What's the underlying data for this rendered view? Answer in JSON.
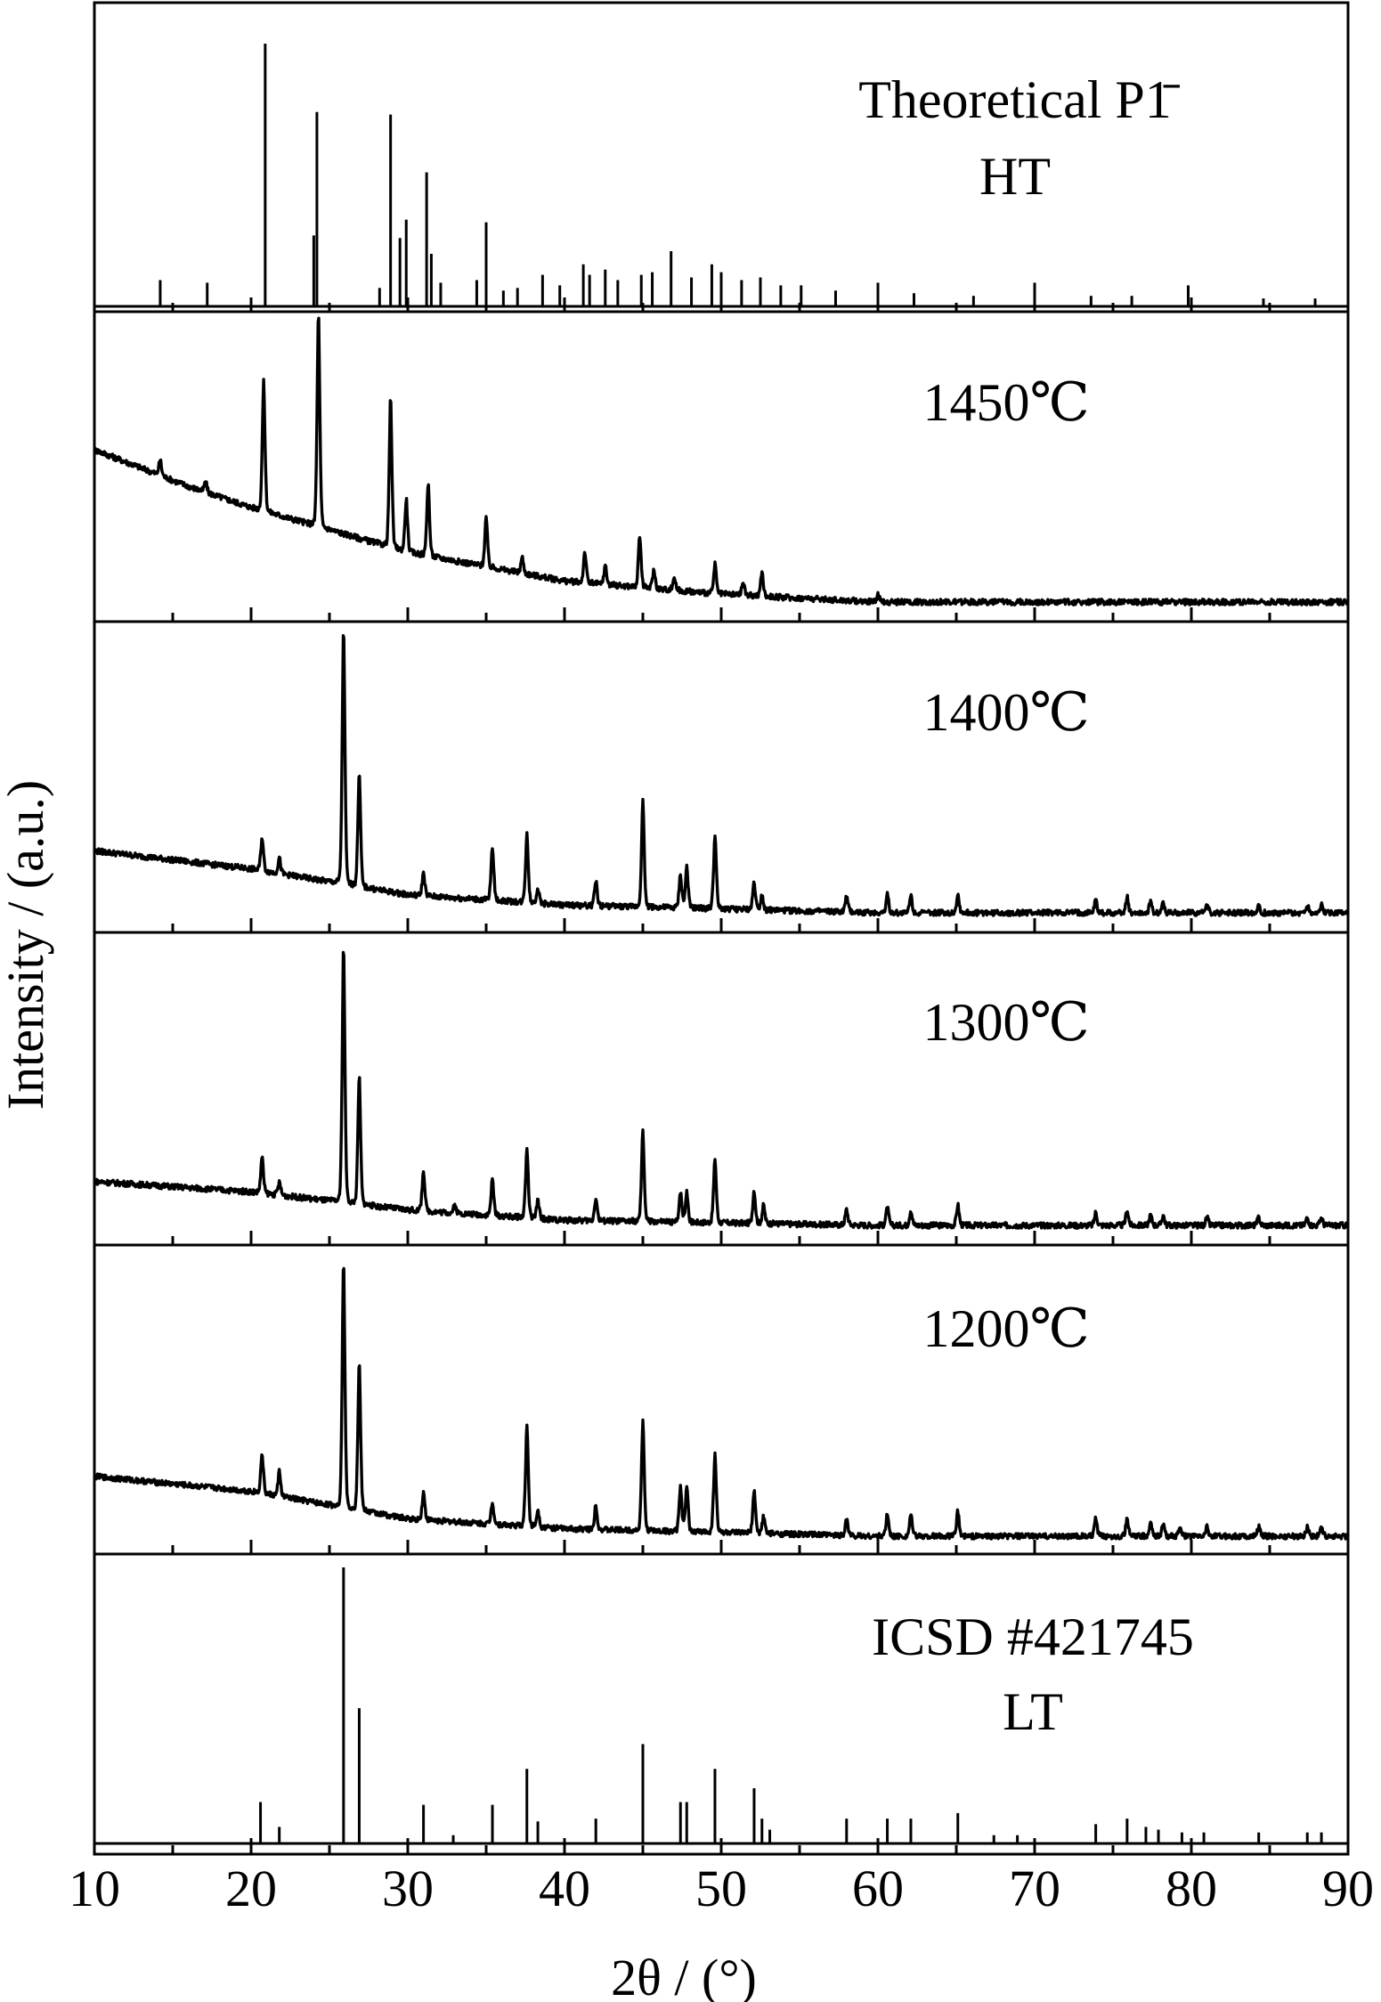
{
  "chart_data": {
    "type": "line",
    "title": "",
    "xlabel": "2θ / (°)",
    "ylabel": "Intensity / (a.u.)",
    "xlim": [
      10,
      90
    ],
    "x_ticks": [
      10,
      20,
      30,
      40,
      50,
      60,
      70,
      80,
      90
    ],
    "x_tick_labels": [
      "10",
      "20",
      "30",
      "40",
      "50",
      "60",
      "70",
      "80",
      "90"
    ],
    "grid": false,
    "legend": "none",
    "layout": "stacked panels sharing the x axis",
    "panels": [
      {
        "name": "Theoretical P1̄ HT",
        "label_lines": [
          "Theoretical P1̄",
          "HT"
        ],
        "style": "sticks",
        "peaks": [
          [
            14.2,
            0.1
          ],
          [
            17.2,
            0.09
          ],
          [
            20.9,
            1.0
          ],
          [
            24.0,
            0.27
          ],
          [
            24.2,
            0.74
          ],
          [
            28.2,
            0.07
          ],
          [
            28.9,
            0.73
          ],
          [
            29.5,
            0.26
          ],
          [
            29.9,
            0.33
          ],
          [
            31.2,
            0.51
          ],
          [
            31.5,
            0.2
          ],
          [
            32.1,
            0.09
          ],
          [
            34.4,
            0.1
          ],
          [
            35.0,
            0.32
          ],
          [
            36.1,
            0.06
          ],
          [
            37.0,
            0.07
          ],
          [
            38.6,
            0.12
          ],
          [
            39.7,
            0.08
          ],
          [
            41.2,
            0.16
          ],
          [
            41.6,
            0.12
          ],
          [
            42.6,
            0.14
          ],
          [
            43.4,
            0.1
          ],
          [
            44.9,
            0.12
          ],
          [
            45.6,
            0.13
          ],
          [
            46.8,
            0.21
          ],
          [
            48.1,
            0.11
          ],
          [
            49.4,
            0.16
          ],
          [
            50.0,
            0.13
          ],
          [
            51.3,
            0.1
          ],
          [
            52.5,
            0.11
          ],
          [
            53.8,
            0.08
          ],
          [
            55.1,
            0.08
          ],
          [
            57.3,
            0.06
          ],
          [
            60.0,
            0.09
          ],
          [
            62.3,
            0.05
          ],
          [
            66.1,
            0.04
          ],
          [
            70.0,
            0.09
          ],
          [
            73.6,
            0.04
          ],
          [
            76.2,
            0.04
          ],
          [
            79.8,
            0.08
          ],
          [
            84.6,
            0.03
          ],
          [
            87.9,
            0.03
          ]
        ]
      },
      {
        "name": "1450℃",
        "label_lines": [
          "1450℃"
        ],
        "style": "pattern",
        "background": [
          [
            10,
            0.58
          ],
          [
            16,
            0.44
          ],
          [
            20,
            0.36
          ],
          [
            30,
            0.19
          ],
          [
            40,
            0.08
          ],
          [
            50,
            0.03
          ],
          [
            60,
            0.0
          ],
          [
            90,
            0.0
          ]
        ],
        "peaks": [
          [
            14.2,
            0.06
          ],
          [
            17.1,
            0.04
          ],
          [
            20.8,
            0.49
          ],
          [
            24.3,
            0.82
          ],
          [
            28.9,
            0.57
          ],
          [
            29.9,
            0.2
          ],
          [
            31.3,
            0.28
          ],
          [
            35.0,
            0.19
          ],
          [
            37.3,
            0.06
          ],
          [
            41.3,
            0.12
          ],
          [
            42.6,
            0.07
          ],
          [
            44.8,
            0.2
          ],
          [
            45.7,
            0.07
          ],
          [
            47.0,
            0.05
          ],
          [
            49.6,
            0.11
          ],
          [
            51.4,
            0.05
          ],
          [
            52.6,
            0.09
          ],
          [
            60.0,
            0.03
          ]
        ]
      },
      {
        "name": "1400℃",
        "label_lines": [
          "1400℃"
        ],
        "style": "pattern",
        "background": [
          [
            10,
            0.24
          ],
          [
            20,
            0.17
          ],
          [
            30,
            0.07
          ],
          [
            40,
            0.03
          ],
          [
            60,
            0.0
          ],
          [
            90,
            0.0
          ]
        ],
        "peaks": [
          [
            20.7,
            0.13
          ],
          [
            21.8,
            0.06
          ],
          [
            25.9,
            1.0
          ],
          [
            26.9,
            0.45
          ],
          [
            31.0,
            0.09
          ],
          [
            35.4,
            0.21
          ],
          [
            37.6,
            0.27
          ],
          [
            38.3,
            0.06
          ],
          [
            42.0,
            0.1
          ],
          [
            45.0,
            0.41
          ],
          [
            47.4,
            0.13
          ],
          [
            47.8,
            0.16
          ],
          [
            49.6,
            0.29
          ],
          [
            52.1,
            0.11
          ],
          [
            52.6,
            0.06
          ],
          [
            58.0,
            0.06
          ],
          [
            60.6,
            0.07
          ],
          [
            62.1,
            0.07
          ],
          [
            65.1,
            0.07
          ],
          [
            73.9,
            0.05
          ],
          [
            75.9,
            0.06
          ],
          [
            77.4,
            0.04
          ],
          [
            78.2,
            0.04
          ],
          [
            81.0,
            0.03
          ],
          [
            84.3,
            0.03
          ],
          [
            87.4,
            0.03
          ],
          [
            88.3,
            0.03
          ]
        ]
      },
      {
        "name": "1300℃",
        "label_lines": [
          "1300℃"
        ],
        "style": "pattern",
        "background": [
          [
            10,
            0.17
          ],
          [
            20,
            0.13
          ],
          [
            30,
            0.06
          ],
          [
            40,
            0.02
          ],
          [
            60,
            0.0
          ],
          [
            90,
            0.0
          ]
        ],
        "peaks": [
          [
            20.7,
            0.14
          ],
          [
            21.8,
            0.05
          ],
          [
            25.9,
            1.0
          ],
          [
            26.9,
            0.5
          ],
          [
            31.0,
            0.16
          ],
          [
            33.0,
            0.03
          ],
          [
            35.4,
            0.14
          ],
          [
            37.6,
            0.27
          ],
          [
            38.3,
            0.07
          ],
          [
            42.0,
            0.09
          ],
          [
            45.0,
            0.35
          ],
          [
            47.4,
            0.12
          ],
          [
            47.8,
            0.12
          ],
          [
            49.6,
            0.25
          ],
          [
            52.1,
            0.13
          ],
          [
            52.7,
            0.07
          ],
          [
            58.0,
            0.06
          ],
          [
            60.6,
            0.07
          ],
          [
            62.1,
            0.06
          ],
          [
            65.1,
            0.08
          ],
          [
            73.9,
            0.05
          ],
          [
            75.9,
            0.06
          ],
          [
            77.4,
            0.04
          ],
          [
            78.2,
            0.04
          ],
          [
            81.0,
            0.03
          ],
          [
            84.3,
            0.03
          ],
          [
            87.4,
            0.03
          ],
          [
            88.3,
            0.03
          ]
        ]
      },
      {
        "name": "1200℃",
        "label_lines": [
          "1200℃"
        ],
        "style": "pattern",
        "background": [
          [
            10,
            0.24
          ],
          [
            20,
            0.18
          ],
          [
            30,
            0.07
          ],
          [
            40,
            0.03
          ],
          [
            60,
            0.0
          ],
          [
            90,
            0.0
          ]
        ],
        "peaks": [
          [
            20.7,
            0.16
          ],
          [
            21.8,
            0.1
          ],
          [
            25.9,
            1.0
          ],
          [
            26.9,
            0.6
          ],
          [
            31.0,
            0.11
          ],
          [
            35.4,
            0.09
          ],
          [
            37.6,
            0.41
          ],
          [
            38.3,
            0.07
          ],
          [
            42.0,
            0.1
          ],
          [
            45.0,
            0.44
          ],
          [
            47.4,
            0.18
          ],
          [
            47.8,
            0.18
          ],
          [
            49.6,
            0.32
          ],
          [
            52.1,
            0.17
          ],
          [
            52.7,
            0.07
          ],
          [
            58.0,
            0.07
          ],
          [
            60.6,
            0.09
          ],
          [
            62.1,
            0.09
          ],
          [
            65.1,
            0.1
          ],
          [
            73.9,
            0.07
          ],
          [
            75.9,
            0.07
          ],
          [
            77.4,
            0.06
          ],
          [
            78.2,
            0.05
          ],
          [
            79.3,
            0.04
          ],
          [
            81.0,
            0.04
          ],
          [
            84.3,
            0.04
          ],
          [
            87.4,
            0.04
          ],
          [
            88.3,
            0.04
          ]
        ]
      },
      {
        "name": "ICSD #421745 LT",
        "label_lines": [
          "ICSD #421745",
          "LT"
        ],
        "style": "sticks",
        "peaks": [
          [
            20.6,
            0.15
          ],
          [
            21.8,
            0.06
          ],
          [
            25.9,
            1.0
          ],
          [
            26.9,
            0.49
          ],
          [
            31.0,
            0.14
          ],
          [
            32.9,
            0.03
          ],
          [
            35.4,
            0.14
          ],
          [
            37.6,
            0.27
          ],
          [
            38.3,
            0.08
          ],
          [
            42.0,
            0.09
          ],
          [
            45.0,
            0.36
          ],
          [
            47.4,
            0.15
          ],
          [
            47.8,
            0.15
          ],
          [
            49.6,
            0.27
          ],
          [
            52.1,
            0.2
          ],
          [
            52.6,
            0.09
          ],
          [
            53.1,
            0.05
          ],
          [
            58.0,
            0.09
          ],
          [
            60.6,
            0.09
          ],
          [
            62.1,
            0.09
          ],
          [
            65.1,
            0.11
          ],
          [
            67.4,
            0.03
          ],
          [
            68.9,
            0.03
          ],
          [
            73.9,
            0.07
          ],
          [
            75.9,
            0.09
          ],
          [
            77.1,
            0.06
          ],
          [
            77.9,
            0.05
          ],
          [
            79.4,
            0.04
          ],
          [
            80.8,
            0.04
          ],
          [
            84.3,
            0.04
          ],
          [
            87.4,
            0.04
          ],
          [
            88.3,
            0.04
          ]
        ]
      }
    ]
  }
}
